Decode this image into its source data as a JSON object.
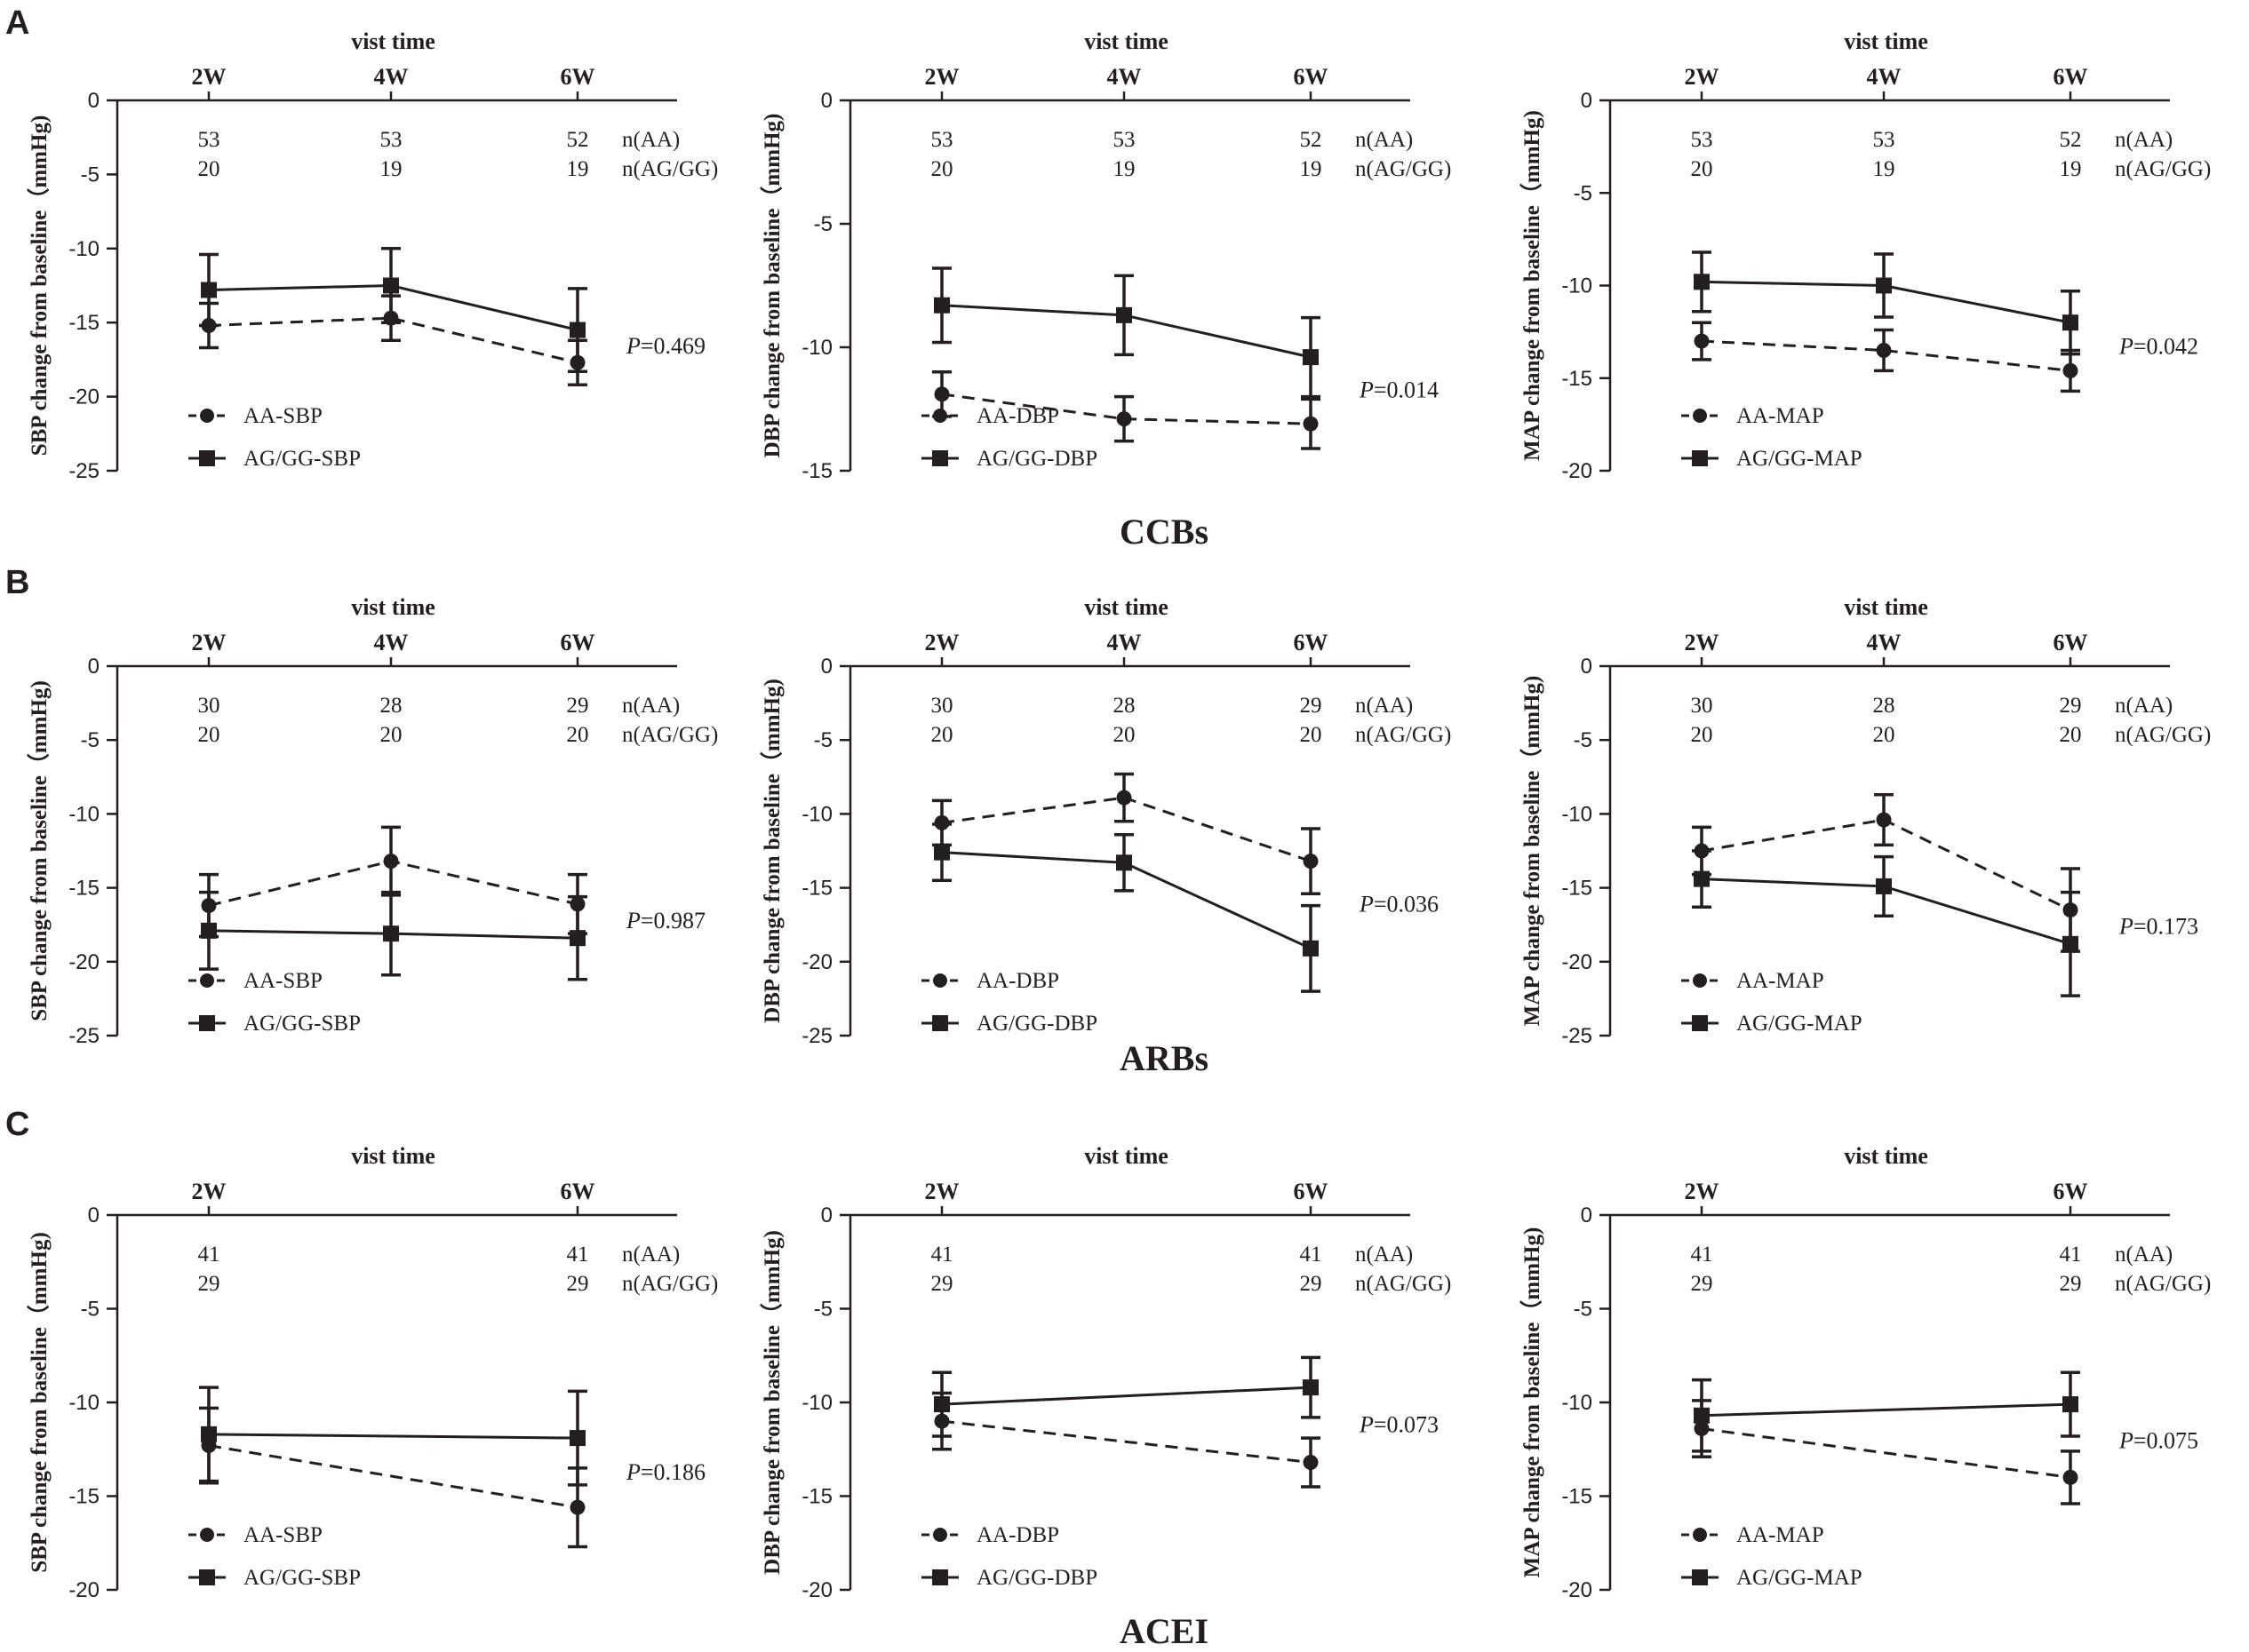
{
  "figure": {
    "panel_letters": [
      "A",
      "B",
      "C"
    ],
    "row_titles": [
      "CCBs",
      "ARBs",
      "ACEI"
    ],
    "x_axis_title": "vist time",
    "n_label_aa": "n(AA)",
    "n_label_ag": "n(AG/GG)",
    "p_prefix": "P"
  },
  "chart_data": [
    {
      "id": "A-SBP",
      "type": "line",
      "row": 0,
      "col": 0,
      "ylabel": "SBP change from baseline（mmHg)",
      "ylim": [
        -25,
        0
      ],
      "yticks": [
        0,
        -5,
        -10,
        -15,
        -20,
        -25
      ],
      "x": [
        "2W",
        "4W",
        "6W"
      ],
      "n_aa": [
        "53",
        "53",
        "52"
      ],
      "n_ag": [
        "20",
        "19",
        "19"
      ],
      "p_value": "=0.469",
      "series": [
        {
          "name": "AA-SBP",
          "marker": "circle",
          "dashed": true,
          "values": [
            -15.2,
            -14.7,
            -17.7
          ],
          "err": [
            1.5,
            1.5,
            1.5
          ]
        },
        {
          "name": "AG/GG-SBP",
          "marker": "square",
          "dashed": false,
          "values": [
            -12.8,
            -12.5,
            -15.5
          ],
          "err": [
            2.4,
            2.5,
            2.8
          ]
        }
      ]
    },
    {
      "id": "A-DBP",
      "type": "line",
      "row": 0,
      "col": 1,
      "ylabel": "DBP change from baseline（mmHg)",
      "ylim": [
        -15,
        0
      ],
      "yticks": [
        0,
        -5,
        -10,
        -15
      ],
      "x": [
        "2W",
        "4W",
        "6W"
      ],
      "n_aa": [
        "53",
        "53",
        "52"
      ],
      "n_ag": [
        "20",
        "19",
        "19"
      ],
      "p_value": "=0.014",
      "series": [
        {
          "name": "AA-DBP",
          "marker": "circle",
          "dashed": true,
          "values": [
            -11.9,
            -12.9,
            -13.1
          ],
          "err": [
            0.9,
            0.9,
            1.0
          ]
        },
        {
          "name": "AG/GG-DBP",
          "marker": "square",
          "dashed": false,
          "values": [
            -8.3,
            -8.7,
            -10.4
          ],
          "err": [
            1.5,
            1.6,
            1.6
          ]
        }
      ]
    },
    {
      "id": "A-MAP",
      "type": "line",
      "row": 0,
      "col": 2,
      "ylabel": "MAP change from baseline（mmHg)",
      "ylim": [
        -20,
        0
      ],
      "yticks": [
        0,
        -5,
        -10,
        -15,
        -20
      ],
      "x": [
        "2W",
        "4W",
        "6W"
      ],
      "n_aa": [
        "53",
        "53",
        "52"
      ],
      "n_ag": [
        "20",
        "19",
        "19"
      ],
      "p_value": "=0.042",
      "series": [
        {
          "name": "AA-MAP",
          "marker": "circle",
          "dashed": true,
          "values": [
            -13.0,
            -13.5,
            -14.6
          ],
          "err": [
            1.0,
            1.1,
            1.1
          ]
        },
        {
          "name": "AG/GG-MAP",
          "marker": "square",
          "dashed": false,
          "values": [
            -9.8,
            -10.0,
            -12.0
          ],
          "err": [
            1.6,
            1.7,
            1.7
          ]
        }
      ]
    },
    {
      "id": "B-SBP",
      "type": "line",
      "row": 1,
      "col": 0,
      "ylabel": "SBP change from baseline（mmHg)",
      "ylim": [
        -25,
        0
      ],
      "yticks": [
        0,
        -5,
        -10,
        -15,
        -20,
        -25
      ],
      "x": [
        "2W",
        "4W",
        "6W"
      ],
      "n_aa": [
        "30",
        "28",
        "29"
      ],
      "n_ag": [
        "20",
        "20",
        "20"
      ],
      "p_value": "=0.987",
      "series": [
        {
          "name": "AA-SBP",
          "marker": "circle",
          "dashed": true,
          "values": [
            -16.2,
            -13.2,
            -16.1
          ],
          "err": [
            2.1,
            2.3,
            2.0
          ]
        },
        {
          "name": "AG/GG-SBP",
          "marker": "square",
          "dashed": false,
          "values": [
            -17.9,
            -18.1,
            -18.4
          ],
          "err": [
            2.6,
            2.8,
            2.8
          ]
        }
      ]
    },
    {
      "id": "B-DBP",
      "type": "line",
      "row": 1,
      "col": 1,
      "ylabel": "DBP change from baseline（mmHg)",
      "ylim": [
        -25,
        0
      ],
      "yticks": [
        0,
        -5,
        -10,
        -15,
        -20,
        -25
      ],
      "x": [
        "2W",
        "4W",
        "6W"
      ],
      "n_aa": [
        "30",
        "28",
        "29"
      ],
      "n_ag": [
        "20",
        "20",
        "20"
      ],
      "p_value": "=0.036",
      "series": [
        {
          "name": "AA-DBP",
          "marker": "circle",
          "dashed": true,
          "values": [
            -10.6,
            -8.9,
            -13.2
          ],
          "err": [
            1.5,
            1.6,
            2.2
          ]
        },
        {
          "name": "AG/GG-DBP",
          "marker": "square",
          "dashed": false,
          "values": [
            -12.6,
            -13.3,
            -19.1
          ],
          "err": [
            1.9,
            1.9,
            2.9
          ]
        }
      ]
    },
    {
      "id": "B-MAP",
      "type": "line",
      "row": 1,
      "col": 2,
      "ylabel": "MAP change from baseline（mmHg)",
      "ylim": [
        -25,
        0
      ],
      "yticks": [
        0,
        -5,
        -10,
        -15,
        -20,
        -25
      ],
      "x": [
        "2W",
        "4W",
        "6W"
      ],
      "n_aa": [
        "30",
        "28",
        "29"
      ],
      "n_ag": [
        "20",
        "20",
        "20"
      ],
      "p_value": "=0.173",
      "series": [
        {
          "name": "AA-MAP",
          "marker": "circle",
          "dashed": true,
          "values": [
            -12.5,
            -10.4,
            -16.5
          ],
          "err": [
            1.6,
            1.7,
            2.8
          ]
        },
        {
          "name": "AG/GG-MAP",
          "marker": "square",
          "dashed": false,
          "values": [
            -14.4,
            -14.9,
            -18.8
          ],
          "err": [
            1.9,
            2.0,
            3.5
          ]
        }
      ]
    },
    {
      "id": "C-SBP",
      "type": "line",
      "row": 2,
      "col": 0,
      "ylabel": "SBP change from baseline（mmHg)",
      "ylim": [
        -20,
        0
      ],
      "yticks": [
        0,
        -5,
        -10,
        -15,
        -20
      ],
      "x": [
        "2W",
        "6W"
      ],
      "xpos": [
        0,
        2
      ],
      "n_aa": [
        "41",
        "41"
      ],
      "n_ag": [
        "29",
        "29"
      ],
      "p_value": "=0.186",
      "series": [
        {
          "name": "AA-SBP",
          "marker": "circle",
          "dashed": true,
          "values": [
            -12.3,
            -15.6
          ],
          "err": [
            2.0,
            2.1
          ]
        },
        {
          "name": "AG/GG-SBP",
          "marker": "square",
          "dashed": false,
          "values": [
            -11.7,
            -11.9
          ],
          "err": [
            2.5,
            2.5
          ]
        }
      ]
    },
    {
      "id": "C-DBP",
      "type": "line",
      "row": 2,
      "col": 1,
      "ylabel": "DBP change from baseline（mmHg)",
      "ylim": [
        -20,
        0
      ],
      "yticks": [
        0,
        -5,
        -10,
        -15,
        -20
      ],
      "x": [
        "2W",
        "6W"
      ],
      "xpos": [
        0,
        2
      ],
      "n_aa": [
        "41",
        "41"
      ],
      "n_ag": [
        "29",
        "29"
      ],
      "p_value": "=0.073",
      "series": [
        {
          "name": "AA-DBP",
          "marker": "circle",
          "dashed": true,
          "values": [
            -11.0,
            -13.2
          ],
          "err": [
            1.5,
            1.3
          ]
        },
        {
          "name": "AG/GG-DBP",
          "marker": "square",
          "dashed": false,
          "values": [
            -10.1,
            -9.2
          ],
          "err": [
            1.7,
            1.6
          ]
        }
      ]
    },
    {
      "id": "C-MAP",
      "type": "line",
      "row": 2,
      "col": 2,
      "ylabel": "MAP change from baseline（mmHg)",
      "ylim": [
        -20,
        0
      ],
      "yticks": [
        0,
        -5,
        -10,
        -15,
        -20
      ],
      "x": [
        "2W",
        "6W"
      ],
      "xpos": [
        0,
        2
      ],
      "n_aa": [
        "41",
        "41"
      ],
      "n_ag": [
        "29",
        "29"
      ],
      "p_value": "=0.075",
      "series": [
        {
          "name": "AA-MAP",
          "marker": "circle",
          "dashed": true,
          "values": [
            -11.4,
            -14.0
          ],
          "err": [
            1.5,
            1.4
          ]
        },
        {
          "name": "AG/GG-MAP",
          "marker": "square",
          "dashed": false,
          "values": [
            -10.7,
            -10.1
          ],
          "err": [
            1.9,
            1.7
          ]
        }
      ]
    }
  ]
}
